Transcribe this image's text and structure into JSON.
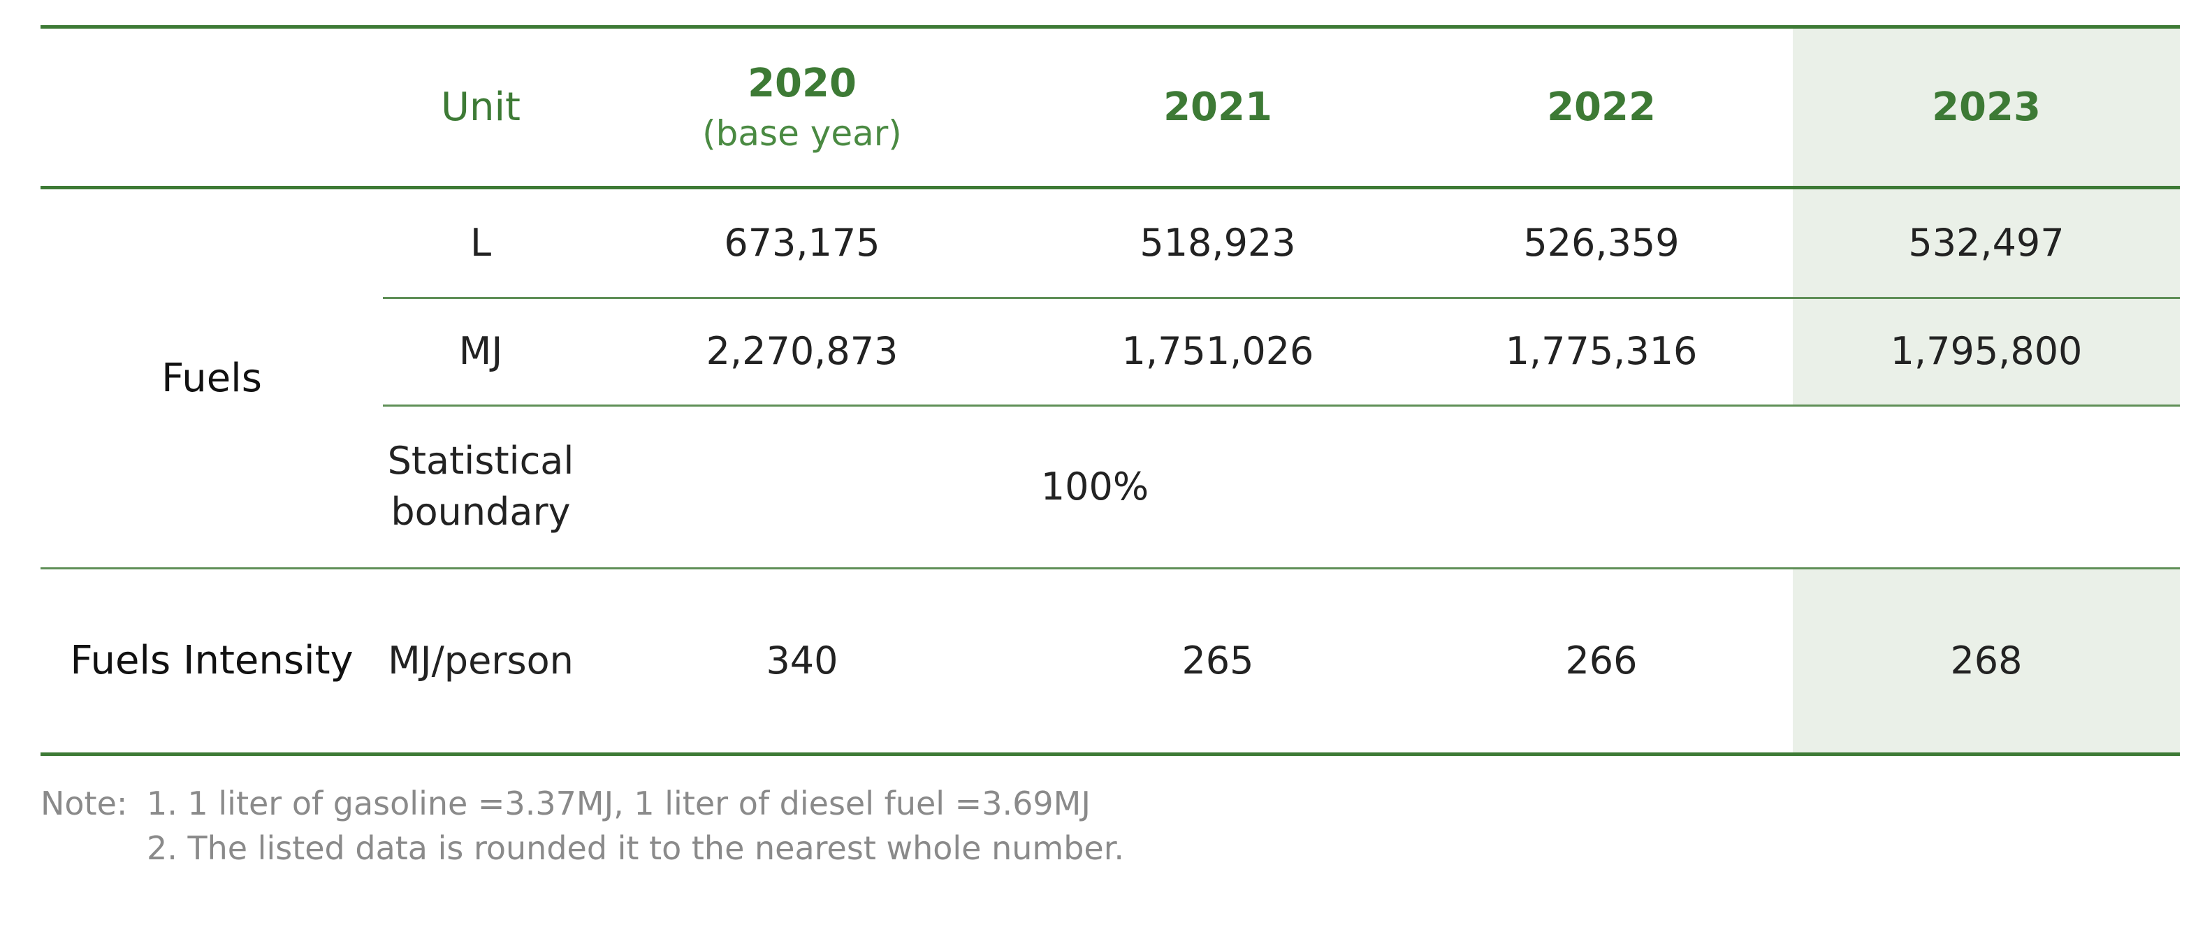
{
  "table": {
    "headers": {
      "unit": "Unit",
      "y2020": "2020",
      "y2020_sub": "(base year)",
      "y2021": "2021",
      "y2022": "2022",
      "y2023": "2023"
    },
    "fuels": {
      "label": "Fuels",
      "rows": [
        {
          "unit": "L",
          "v2020": "673,175",
          "v2021": "518,923",
          "v2022": "526,359",
          "v2023": "532,497"
        },
        {
          "unit": "MJ",
          "v2020": "2,270,873",
          "v2021": "1,751,026",
          "v2022": "1,775,316",
          "v2023": "1,795,800"
        }
      ],
      "boundary": {
        "unit_line1": "Statistical",
        "unit_line2": "boundary",
        "value": "100%"
      }
    },
    "intensity": {
      "label": "Fuels Intensity",
      "unit": "MJ/person",
      "v2020": "340",
      "v2021": "265",
      "v2022": "266",
      "v2023": "268"
    }
  },
  "notes": {
    "prefix": "Note:",
    "items": [
      "1. 1 liter of gasoline =3.37MJ, 1 liter of diesel fuel =3.69MJ",
      "2. The listed data is rounded it to the nearest whole number."
    ]
  }
}
